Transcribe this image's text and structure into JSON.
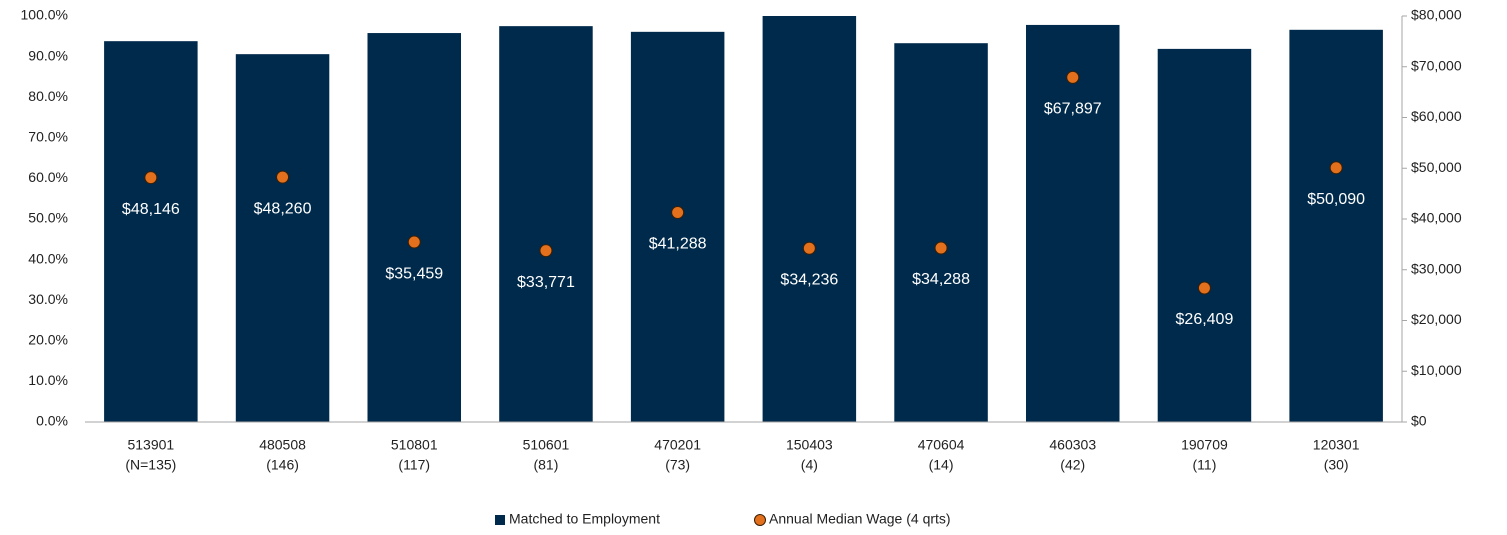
{
  "chart_data": {
    "type": "bar",
    "categories": [
      [
        "513901",
        "(N=135)"
      ],
      [
        "480508",
        "(146)"
      ],
      [
        "510801",
        "(117)"
      ],
      [
        "510601",
        "(81)"
      ],
      [
        "470201",
        "(73)"
      ],
      [
        "150403",
        "(4)"
      ],
      [
        "470604",
        "(14)"
      ],
      [
        "460303",
        "(42)"
      ],
      [
        "190709",
        "(11)"
      ],
      [
        "120301",
        "(30)"
      ]
    ],
    "series": [
      {
        "name": "Matched to Employment",
        "type": "bar",
        "color": "#002a4b",
        "values": [
          93.8,
          90.6,
          95.8,
          97.5,
          96.1,
          100,
          93.3,
          97.8,
          91.9,
          96.6
        ]
      },
      {
        "name": "Annual Median Wage (4 qrts)",
        "type": "scatter",
        "axis": "y2",
        "color": "#e2701c",
        "values": [
          48146,
          48260,
          35459,
          33771,
          41288,
          34236,
          34288,
          67897,
          26409,
          50090
        ],
        "value_labels": [
          "$48,146",
          "$48,260",
          "$35,459",
          "$33,771",
          "$41,288",
          "$34,236",
          "$34,288",
          "$67,897",
          "$26,409",
          "$50,090"
        ]
      }
    ],
    "ylim": [
      0,
      100
    ],
    "yticks": [
      {
        "value": 0,
        "label": "0.0%"
      },
      {
        "value": 10,
        "label": "10.0%"
      },
      {
        "value": 20,
        "label": "20.0%"
      },
      {
        "value": 30,
        "label": "30.0%"
      },
      {
        "value": 40,
        "label": "40.0%"
      },
      {
        "value": 50,
        "label": "50.0%"
      },
      {
        "value": 60,
        "label": "60.0%"
      },
      {
        "value": 70,
        "label": "70.0%"
      },
      {
        "value": 80,
        "label": "80.0%"
      },
      {
        "value": 90,
        "label": "90.0%"
      },
      {
        "value": 100,
        "label": "100.0%"
      }
    ],
    "y2lim": [
      0,
      80000
    ],
    "y2ticks": [
      {
        "value": 0,
        "label": "$0"
      },
      {
        "value": 10000,
        "label": "$10,000"
      },
      {
        "value": 20000,
        "label": "$20,000"
      },
      {
        "value": 30000,
        "label": "$30,000"
      },
      {
        "value": 40000,
        "label": "$40,000"
      },
      {
        "value": 50000,
        "label": "$50,000"
      },
      {
        "value": 60000,
        "label": "$60,000"
      },
      {
        "value": 70000,
        "label": "$70,000"
      },
      {
        "value": 80000,
        "label": "$80,000"
      }
    ],
    "grid": false,
    "legend": "bottom"
  }
}
